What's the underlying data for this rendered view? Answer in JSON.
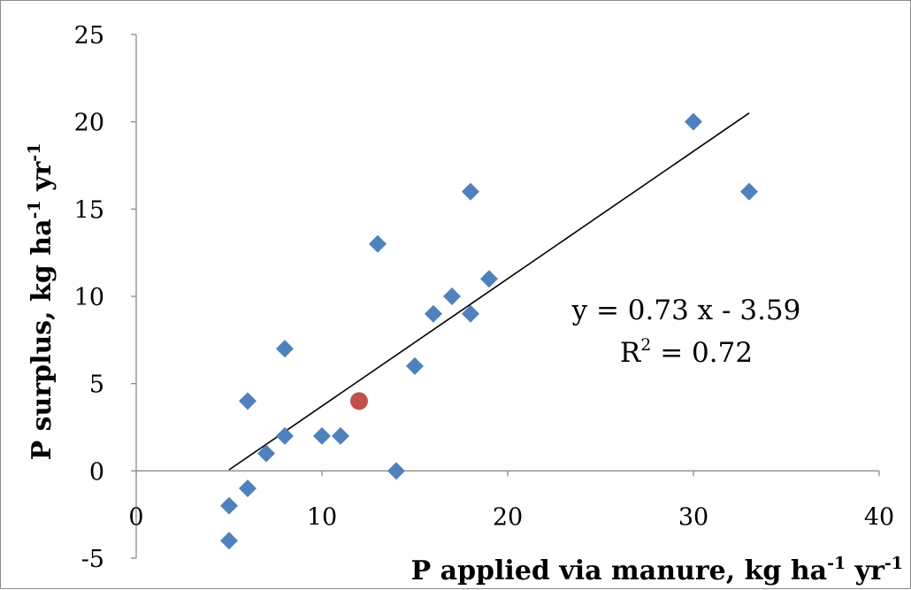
{
  "chart_data": {
    "type": "scatter",
    "xlabel": {
      "base": "P applied via manure, kg ha",
      "exp1": "-1",
      "mid": " yr",
      "exp2": "-1"
    },
    "ylabel": {
      "base": "P surplus, kg ha",
      "exp1": "-1",
      "mid": " yr",
      "exp2": "-1"
    },
    "xlim": [
      0,
      40
    ],
    "ylim": [
      -5,
      25
    ],
    "xticks": [
      "0",
      "10",
      "20",
      "30",
      "40"
    ],
    "yticks": [
      "-5",
      "0",
      "5",
      "10",
      "15",
      "20",
      "25"
    ],
    "xtick_values": [
      0,
      10,
      20,
      30,
      40
    ],
    "ytick_values": [
      -5,
      0,
      5,
      10,
      15,
      20,
      25
    ],
    "grid": false,
    "series": [
      {
        "marker": "diamond",
        "color": "#4f81bd",
        "x": [
          5,
          5,
          6,
          6,
          7,
          8,
          8,
          10,
          11,
          13,
          14,
          15,
          16,
          17,
          18,
          18,
          19,
          30,
          33
        ],
        "y": [
          -4,
          -2,
          -1,
          4,
          1,
          2,
          7,
          2,
          2,
          13,
          0,
          6,
          9,
          10,
          9,
          16,
          11,
          20,
          16
        ]
      },
      {
        "marker": "circle",
        "color": "#c0504d",
        "x": [
          12
        ],
        "y": [
          4
        ]
      }
    ],
    "trendline": {
      "slope": 0.73,
      "intercept": -3.59,
      "x_range": [
        5,
        33
      ],
      "color": "#000000"
    },
    "annotations": {
      "equation": "y = 0.73 x - 3.59",
      "r2_label": "R",
      "r2_exp": "2",
      "r2_value": " = 0.72"
    }
  }
}
